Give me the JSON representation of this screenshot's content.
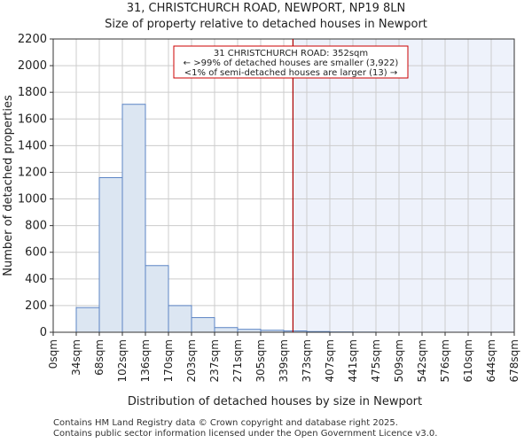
{
  "title_line1": "31, CHRISTCHURCH ROAD, NEWPORT, NP19 8LN",
  "title_line2": "Size of property relative to detached houses in Newport",
  "footer_line1": "Contains HM Land Registry data © Crown copyright and database right 2025.",
  "footer_line2": "Contains public sector information licensed under the Open Government Licence v3.0.",
  "chart_data": {
    "type": "bar",
    "title": "Size of property relative to detached houses in Newport",
    "xlabel": "Distribution of detached houses by size in Newport",
    "ylabel": "Number of detached properties",
    "ylim": [
      0,
      2200
    ],
    "yticks": [
      0,
      200,
      400,
      600,
      800,
      1000,
      1200,
      1400,
      1600,
      1800,
      2000,
      2200
    ],
    "bin_labels": [
      "0sqm",
      "34sqm",
      "68sqm",
      "102sqm",
      "136sqm",
      "170sqm",
      "203sqm",
      "237sqm",
      "271sqm",
      "305sqm",
      "339sqm",
      "373sqm",
      "407sqm",
      "441sqm",
      "475sqm",
      "509sqm",
      "542sqm",
      "576sqm",
      "610sqm",
      "644sqm",
      "678sqm"
    ],
    "values": [
      0,
      185,
      1160,
      1710,
      500,
      200,
      110,
      35,
      22,
      15,
      10,
      5,
      2,
      1,
      0,
      0,
      0,
      0,
      0,
      0
    ],
    "marker": {
      "value_sqm": 352,
      "bin_position": 10.4,
      "color": "#aa0000"
    },
    "annotation": {
      "lines": [
        "31 CHRISTCHURCH ROAD: 352sqm",
        "← >99% of detached houses are smaller (3,922)",
        "<1% of semi-detached houses are larger (13) →"
      ],
      "border_color": "#cc0000"
    },
    "colors": {
      "bar_fill": "#dce6f2",
      "bar_edge": "#5b84c4",
      "highlight_region": "#eef2fb",
      "grid": "#cccccc"
    }
  }
}
